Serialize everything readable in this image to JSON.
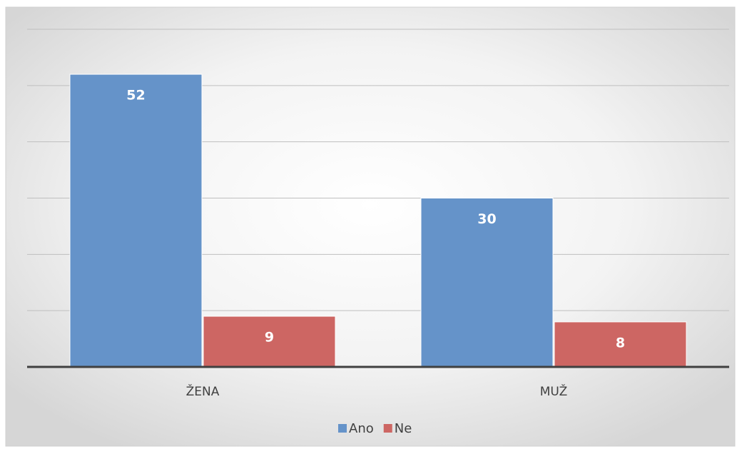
{
  "chart_data": {
    "type": "bar",
    "categories": [
      "ŽENA",
      "MUŽ"
    ],
    "series": [
      {
        "name": "Ano",
        "color": "#6593c9",
        "values": [
          52,
          30
        ]
      },
      {
        "name": "Ne",
        "color": "#cd6663",
        "values": [
          9,
          8
        ]
      }
    ],
    "ylim": [
      0,
      60
    ],
    "yticks": [
      0,
      10,
      20,
      30,
      40,
      50,
      60
    ],
    "grid": true,
    "legend": "bottom"
  }
}
